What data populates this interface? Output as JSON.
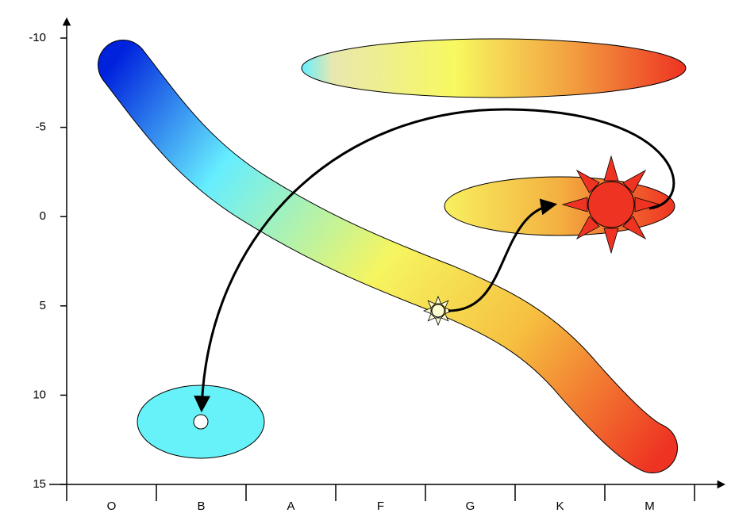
{
  "y_axis": {
    "ticks": [
      "-10",
      "-5",
      "0",
      "5",
      "10",
      "15"
    ]
  },
  "x_axis": {
    "categories": [
      "O",
      "B",
      "A",
      "F",
      "G",
      "K",
      "M"
    ]
  }
}
